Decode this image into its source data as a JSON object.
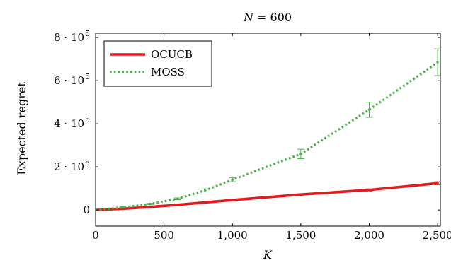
{
  "chart_data": {
    "type": "line",
    "title": "N = 600",
    "title_parts": {
      "var": "N",
      "rest": " = 600"
    },
    "xlabel": "K",
    "ylabel": "Expected regret",
    "xlim": [
      0,
      2520
    ],
    "ylim": [
      -75000,
      820000
    ],
    "xticks": [
      {
        "value": 0,
        "label": "0"
      },
      {
        "value": 500,
        "label": "500"
      },
      {
        "value": 1000,
        "label": "1,000"
      },
      {
        "value": 1500,
        "label": "1,500"
      },
      {
        "value": 2000,
        "label": "2,000"
      },
      {
        "value": 2500,
        "label": "2,500"
      }
    ],
    "yticks": [
      {
        "value": 0,
        "label": "0",
        "exp": ""
      },
      {
        "value": 200000,
        "label": "2 · 10",
        "exp": "5"
      },
      {
        "value": 400000,
        "label": "4 · 10",
        "exp": "5"
      },
      {
        "value": 600000,
        "label": "6 · 10",
        "exp": "5"
      },
      {
        "value": 800000,
        "label": "8 · 10",
        "exp": "5"
      }
    ],
    "grid": false,
    "legend_position": "top-left",
    "series": [
      {
        "name": "OCUCB",
        "color": "#e41a1c",
        "style": "solid",
        "x": [
          0,
          200,
          400,
          600,
          800,
          1000,
          1500,
          2000,
          2500
        ],
        "y": [
          0,
          6000,
          14000,
          24000,
          35000,
          46000,
          72000,
          93000,
          124000
        ],
        "err": [
          0,
          500,
          800,
          1000,
          1500,
          2000,
          3000,
          5000,
          7000
        ]
      },
      {
        "name": "MOSS",
        "color": "#4daf4a",
        "style": "dotted",
        "x": [
          0,
          200,
          400,
          600,
          800,
          1000,
          1500,
          2000,
          2500
        ],
        "y": [
          0,
          12000,
          28000,
          52000,
          91000,
          140000,
          260000,
          465000,
          685000
        ],
        "err": [
          0,
          1500,
          2500,
          4000,
          7000,
          9000,
          22000,
          35000,
          62000
        ]
      }
    ]
  }
}
